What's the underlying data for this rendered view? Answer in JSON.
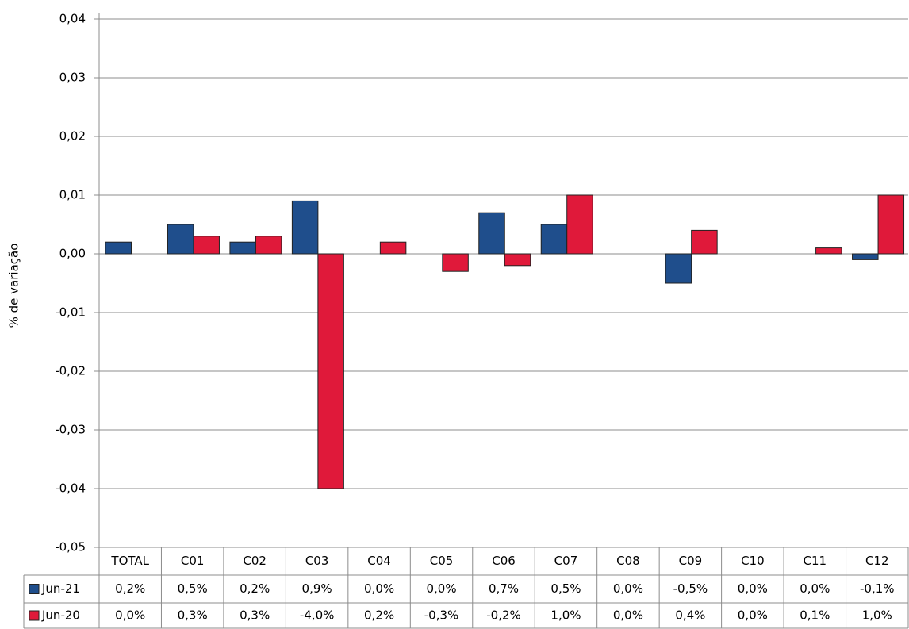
{
  "chart_data": {
    "type": "bar",
    "y_label": "% de variação",
    "categories": [
      "TOTAL",
      "C01",
      "C02",
      "C03",
      "C04",
      "C05",
      "C06",
      "C07",
      "C08",
      "C09",
      "C10",
      "C11",
      "C12"
    ],
    "series": [
      {
        "name": "Jun-21",
        "color": "#1f4e8c",
        "values": [
          0.002,
          0.005,
          0.002,
          0.009,
          0,
          0,
          0.007,
          0.005,
          0,
          -0.005,
          0,
          0,
          -0.001
        ],
        "value_labels": [
          "0,2%",
          "0,5%",
          "0,2%",
          "0,9%",
          "0,0%",
          "0,0%",
          "0,7%",
          "0,5%",
          "0,0%",
          "-0,5%",
          "0,0%",
          "0,0%",
          "-0,1%"
        ]
      },
      {
        "name": "Jun-20",
        "color": "#e0193a",
        "values": [
          0,
          0.003,
          0.003,
          -0.04,
          0.002,
          -0.003,
          -0.002,
          0.01,
          0,
          0.004,
          0,
          0.001,
          0.01
        ],
        "value_labels": [
          "0,0%",
          "0,3%",
          "0,3%",
          "-4,0%",
          "0,2%",
          "-0,3%",
          "-0,2%",
          "1,0%",
          "0,0%",
          "0,4%",
          "0,0%",
          "0,1%",
          "1,0%"
        ]
      }
    ],
    "ylim": [
      -0.05,
      0.04
    ],
    "yticks": [
      {
        "value": -0.05,
        "label": "-0,05"
      },
      {
        "value": -0.04,
        "label": "-0,04"
      },
      {
        "value": -0.03,
        "label": "-0,03"
      },
      {
        "value": -0.02,
        "label": "-0,02"
      },
      {
        "value": -0.01,
        "label": "-0,01"
      },
      {
        "value": 0,
        "label": "0,00"
      },
      {
        "value": 0.01,
        "label": "0,01"
      },
      {
        "value": 0.02,
        "label": "0,02"
      },
      {
        "value": 0.03,
        "label": "0,03"
      },
      {
        "value": 0.04,
        "label": "0,04"
      }
    ],
    "grid": true
  }
}
